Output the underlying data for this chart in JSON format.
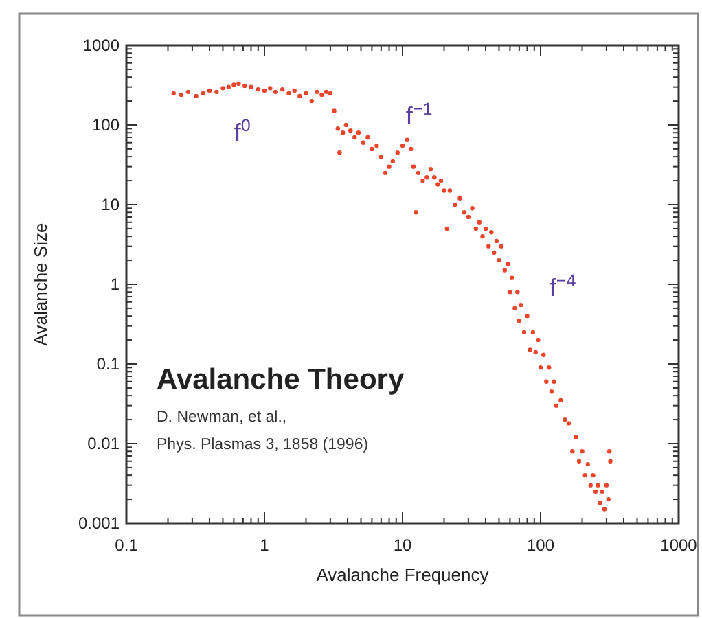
{
  "chart_data": {
    "type": "scatter",
    "title": "Avalanche Theory",
    "xlabel": "Avalanche Frequency",
    "ylabel": "Avalanche Size",
    "log": "xy",
    "marker": "circle",
    "grid": false,
    "xlim": [
      0.1,
      1000
    ],
    "ylim": [
      0.001,
      1000
    ],
    "xticks": [
      0.1,
      {
        "value": 0.2,
        "label": null
      },
      {
        "value": 0.3,
        "label": null
      },
      {
        "value": 0.4,
        "label": null
      },
      {
        "value": 0.5,
        "label": null
      },
      {
        "value": 0.6,
        "label": null
      },
      {
        "value": 0.7,
        "label": null
      },
      {
        "value": 0.8,
        "label": null
      },
      {
        "value": 0.9,
        "label": null
      },
      1,
      {
        "value": 2,
        "label": null
      },
      {
        "value": 3,
        "label": null
      },
      {
        "value": 4,
        "label": null
      },
      {
        "value": 5,
        "label": null
      },
      {
        "value": 6,
        "label": null
      },
      {
        "value": 7,
        "label": null
      },
      {
        "value": 8,
        "label": null
      },
      {
        "value": 9,
        "label": null
      },
      10,
      {
        "value": 20,
        "label": null
      },
      {
        "value": 30,
        "label": null
      },
      {
        "value": 40,
        "label": null
      },
      {
        "value": 50,
        "label": null
      },
      {
        "value": 60,
        "label": null
      },
      {
        "value": 70,
        "label": null
      },
      {
        "value": 80,
        "label": null
      },
      {
        "value": 90,
        "label": null
      },
      100,
      {
        "value": 200,
        "label": null
      },
      {
        "value": 300,
        "label": null
      },
      {
        "value": 400,
        "label": null
      },
      {
        "value": 500,
        "label": null
      },
      {
        "value": 600,
        "label": null
      },
      {
        "value": 700,
        "label": null
      },
      {
        "value": 800,
        "label": null
      },
      {
        "value": 900,
        "label": null
      },
      1000
    ],
    "yticks": [
      0.001,
      {
        "value": 0.002,
        "label": null
      },
      {
        "value": 0.003,
        "label": null
      },
      {
        "value": 0.004,
        "label": null
      },
      {
        "value": 0.005,
        "label": null
      },
      {
        "value": 0.006,
        "label": null
      },
      {
        "value": 0.007,
        "label": null
      },
      {
        "value": 0.008,
        "label": null
      },
      {
        "value": 0.009,
        "label": null
      },
      0.01,
      {
        "value": 0.02,
        "label": null
      },
      {
        "value": 0.03,
        "label": null
      },
      {
        "value": 0.04,
        "label": null
      },
      {
        "value": 0.05,
        "label": null
      },
      {
        "value": 0.06,
        "label": null
      },
      {
        "value": 0.07,
        "label": null
      },
      {
        "value": 0.08,
        "label": null
      },
      {
        "value": 0.09,
        "label": null
      },
      0.1,
      {
        "value": 0.2,
        "label": null
      },
      {
        "value": 0.3,
        "label": null
      },
      {
        "value": 0.4,
        "label": null
      },
      {
        "value": 0.5,
        "label": null
      },
      {
        "value": 0.6,
        "label": null
      },
      {
        "value": 0.7,
        "label": null
      },
      {
        "value": 0.8,
        "label": null
      },
      {
        "value": 0.9,
        "label": null
      },
      1,
      {
        "value": 2,
        "label": null
      },
      {
        "value": 3,
        "label": null
      },
      {
        "value": 4,
        "label": null
      },
      {
        "value": 5,
        "label": null
      },
      {
        "value": 6,
        "label": null
      },
      {
        "value": 7,
        "label": null
      },
      {
        "value": 8,
        "label": null
      },
      {
        "value": 9,
        "label": null
      },
      10,
      {
        "value": 20,
        "label": null
      },
      {
        "value": 30,
        "label": null
      },
      {
        "value": 40,
        "label": null
      },
      {
        "value": 50,
        "label": null
      },
      {
        "value": 60,
        "label": null
      },
      {
        "value": 70,
        "label": null
      },
      {
        "value": 80,
        "label": null
      },
      {
        "value": 90,
        "label": null
      },
      100,
      {
        "value": 200,
        "label": null
      },
      {
        "value": 300,
        "label": null
      },
      {
        "value": 400,
        "label": null
      },
      {
        "value": 500,
        "label": null
      },
      {
        "value": 600,
        "label": null
      },
      {
        "value": 700,
        "label": null
      },
      {
        "value": 800,
        "label": null
      },
      {
        "value": 900,
        "label": null
      },
      1000
    ],
    "annotations": [
      "f$^{0}$",
      "f$^{−1}$",
      "f$^{−4}$",
      "D. Newman, et al.,",
      "Phys. Plasmas 3, 1858 (1996)"
    ],
    "series": [
      {
        "color": "#e8452a",
        "x": [
          0.22,
          0.25,
          0.28,
          0.32,
          0.36,
          0.4,
          0.45,
          0.5,
          0.55,
          0.6,
          0.65,
          0.72,
          0.8,
          0.9,
          1.0,
          1.1,
          1.2,
          1.35,
          1.5,
          1.65,
          1.8,
          2.0,
          2.2,
          2.4,
          2.6,
          2.8,
          3.0,
          3.2,
          3.4,
          3.5,
          3.7,
          3.9,
          4.2,
          4.5,
          4.8,
          5.2,
          5.6,
          6.0,
          6.5,
          7.0,
          7.5,
          8.0,
          8.5,
          9.2,
          10,
          10.8,
          11.5,
          12,
          12.5,
          13,
          14,
          15,
          16,
          17,
          18,
          19,
          20,
          21,
          22,
          24,
          26,
          28,
          30,
          32,
          34,
          36,
          38,
          40,
          42,
          44,
          46,
          48,
          50,
          52,
          55,
          58,
          60,
          62,
          65,
          68,
          70,
          72,
          76,
          80,
          84,
          88,
          92,
          96,
          100,
          105,
          110,
          115,
          120,
          125,
          130,
          140,
          150,
          160,
          170,
          180,
          190,
          200,
          210,
          220,
          230,
          240,
          250,
          260,
          270,
          280,
          290,
          300,
          310,
          315,
          320
        ],
        "values": [
          250,
          240,
          260,
          230,
          250,
          270,
          260,
          290,
          300,
          320,
          330,
          310,
          300,
          280,
          270,
          290,
          260,
          280,
          250,
          270,
          230,
          250,
          200,
          260,
          240,
          260,
          250,
          150,
          90,
          45,
          80,
          100,
          85,
          70,
          80,
          60,
          70,
          50,
          55,
          40,
          25,
          30,
          35,
          45,
          55,
          65,
          50,
          30,
          8,
          25,
          20,
          22,
          28,
          22,
          18,
          20,
          15,
          5,
          15,
          10,
          12,
          8,
          7,
          9,
          5,
          6,
          4,
          5,
          3,
          4.5,
          2.5,
          3.5,
          2,
          3,
          1.5,
          1.8,
          0.8,
          1.2,
          0.5,
          0.8,
          0.35,
          0.55,
          0.25,
          0.4,
          0.15,
          0.25,
          0.14,
          0.2,
          0.09,
          0.13,
          0.06,
          0.09,
          0.045,
          0.06,
          0.03,
          0.035,
          0.02,
          0.018,
          0.008,
          0.012,
          0.006,
          0.008,
          0.004,
          0.0055,
          0.003,
          0.004,
          0.0025,
          0.003,
          0.0018,
          0.0025,
          0.0015,
          0.003,
          0.002,
          0.008,
          0.006
        ]
      }
    ]
  }
}
